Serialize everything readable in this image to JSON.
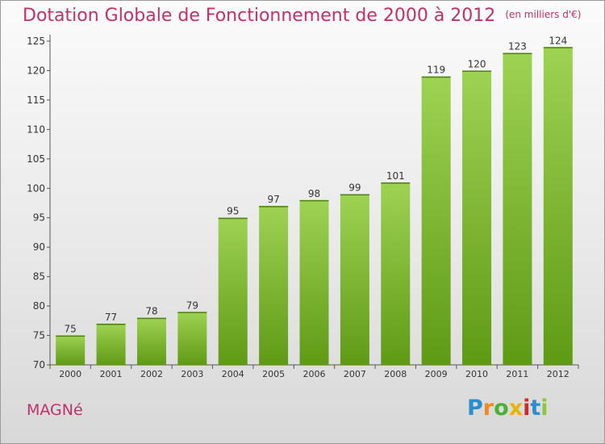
{
  "title": "Dotation Globale de Fonctionnement de 2000 à 2012",
  "subtitle": "(en milliers d'€)",
  "commune": "MAGNé",
  "logo": {
    "text": "Proxiti",
    "colors": [
      "#2a8fd0",
      "#f08a1c",
      "#4caf3a",
      "#e8b400",
      "#d9262b",
      "#2a8fd0",
      "#8cc63f"
    ]
  },
  "colors": {
    "title": "#c0306a",
    "bar_top": "#9ed253",
    "bar_bottom": "#5f9a15"
  },
  "chart_data": {
    "type": "bar",
    "title": "Dotation Globale de Fonctionnement de 2000 à 2012",
    "categories": [
      "2000",
      "2001",
      "2002",
      "2003",
      "2004",
      "2005",
      "2006",
      "2007",
      "2008",
      "2009",
      "2010",
      "2011",
      "2012"
    ],
    "values": [
      75,
      77,
      78,
      79,
      95,
      97,
      98,
      99,
      101,
      119,
      120,
      123,
      124
    ],
    "yticks": [
      70,
      75,
      80,
      85,
      90,
      95,
      100,
      105,
      110,
      115,
      120,
      125
    ],
    "ylim": [
      70,
      125
    ],
    "xlabel": "",
    "ylabel": "",
    "grid": false
  }
}
